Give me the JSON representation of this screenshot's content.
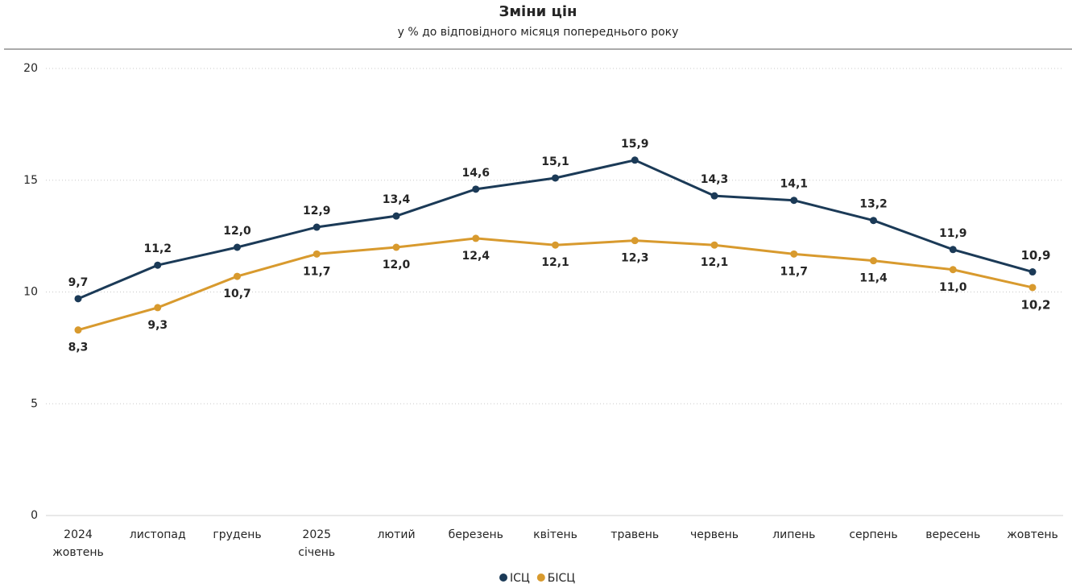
{
  "chart_data": {
    "type": "line",
    "title": "Зміни цін",
    "subtitle": "у % до відповідного місяця попереднього року",
    "categories": [
      "жовтень",
      "листопад",
      "грудень",
      "січень",
      "лютий",
      "березень",
      "квітень",
      "травень",
      "червень",
      "липень",
      "серпень",
      "вересень",
      "жовтень"
    ],
    "year_labels": [
      "2024",
      null,
      null,
      "2025",
      null,
      null,
      null,
      null,
      null,
      null,
      null,
      null,
      null
    ],
    "series": [
      {
        "name": "ІСЦ",
        "color": "#1b3a57",
        "values": [
          9.7,
          11.2,
          12.0,
          12.9,
          13.4,
          14.6,
          15.1,
          15.9,
          14.3,
          14.1,
          13.2,
          11.9,
          10.9
        ],
        "value_labels": [
          "9,7",
          "11,2",
          "12,0",
          "12,9",
          "13,4",
          "14,6",
          "15,1",
          "15,9",
          "14,3",
          "14,1",
          "13,2",
          "11,9",
          "10,9"
        ]
      },
      {
        "name": "БІСЦ",
        "color": "#d89a2e",
        "values": [
          8.3,
          9.3,
          10.7,
          11.7,
          12.0,
          12.4,
          12.1,
          12.3,
          12.1,
          11.7,
          11.4,
          11.0,
          10.2
        ],
        "value_labels": [
          "8,3",
          "9,3",
          "10,7",
          "11,7",
          "12,0",
          "12,4",
          "12,1",
          "12,3",
          "12,1",
          "11,7",
          "11,4",
          "11,0",
          "10,2"
        ]
      }
    ],
    "ylim": [
      0,
      20
    ],
    "yticks": [
      0,
      5,
      10,
      15,
      20
    ],
    "grid": true
  }
}
